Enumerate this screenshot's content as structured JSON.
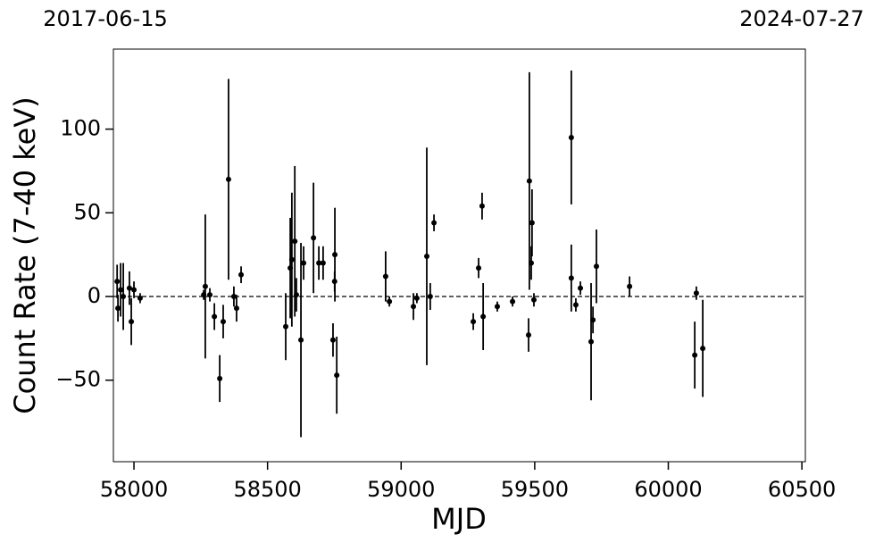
{
  "chart_data": {
    "type": "errorbar",
    "top_left_label": "2017-06-15",
    "top_right_label": "2024-07-27",
    "xlabel": "MJD",
    "ylabel": "Count Rate (7-40 keV)",
    "xlim": [
      57923,
      60513
    ],
    "ylim": [
      -98.7,
      147.8
    ],
    "xticks": [
      58000,
      58500,
      59000,
      59500,
      60000,
      60500
    ],
    "yticks": [
      {
        "value": -50,
        "label": "−50"
      },
      0,
      50,
      100
    ],
    "hline": 0,
    "series": [
      {
        "color": "#000000",
        "x": [
          57937,
          57940,
          57950,
          57960,
          57983,
          57990,
          58000,
          58023,
          58261,
          58267,
          58284,
          58301,
          58321,
          58334,
          58354,
          58374,
          58384,
          58401,
          58568,
          58585,
          58591,
          58602,
          58608,
          58625,
          58635,
          58672,
          58692,
          58708,
          58745,
          58752,
          58759,
          58751,
          58942,
          58956,
          59046,
          59059,
          59096,
          59109,
          59123,
          59270,
          59290,
          59303,
          59307,
          59360,
          59417,
          59477,
          59480,
          59487,
          59490,
          59497,
          59637,
          59637,
          59654,
          59671,
          59711,
          59718,
          59731,
          59855,
          60099,
          60105,
          60129
        ],
        "y": [
          9,
          -7,
          4,
          0,
          5,
          -15,
          4,
          -1,
          1,
          6,
          1,
          -12,
          -49,
          -15,
          70,
          0,
          -7,
          13,
          -18,
          17,
          22,
          33,
          1,
          -26,
          20,
          35,
          20,
          20,
          -26,
          25,
          -47,
          9,
          12,
          -3,
          -6,
          -1,
          24,
          0,
          44,
          -15,
          17,
          54,
          -12,
          -6,
          -3,
          -23,
          69,
          20,
          44,
          -2,
          95,
          11,
          -5,
          5,
          -27,
          -14,
          18,
          6,
          -35,
          2,
          -31
        ],
        "yerr": [
          10,
          8,
          16,
          20,
          10,
          14,
          5,
          3,
          3,
          43,
          4,
          8,
          14,
          10,
          60,
          6,
          8,
          5,
          20,
          30,
          40,
          45,
          10,
          58,
          10,
          33,
          10,
          10,
          10,
          28,
          23,
          6,
          15,
          3,
          8,
          3,
          65,
          8,
          5,
          5,
          6,
          8,
          20,
          3,
          3,
          10,
          65,
          10,
          20,
          4,
          40,
          20,
          4,
          4,
          35,
          8,
          22,
          6,
          20,
          4,
          29
        ]
      }
    ]
  }
}
